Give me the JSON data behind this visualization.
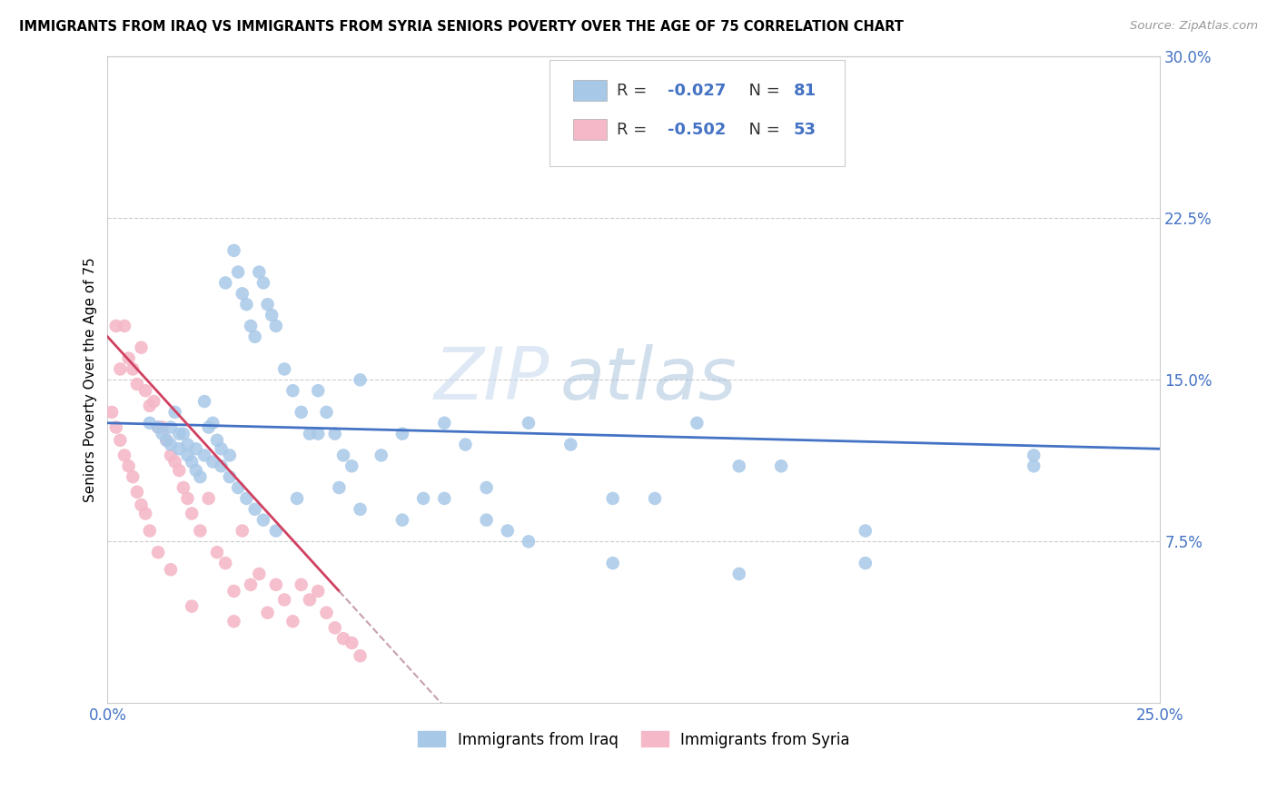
{
  "title": "IMMIGRANTS FROM IRAQ VS IMMIGRANTS FROM SYRIA SENIORS POVERTY OVER THE AGE OF 75 CORRELATION CHART",
  "source": "Source: ZipAtlas.com",
  "ylabel": "Seniors Poverty Over the Age of 75",
  "xlabel_iraq": "Immigrants from Iraq",
  "xlabel_syria": "Immigrants from Syria",
  "r_iraq": -0.027,
  "n_iraq": 81,
  "r_syria": -0.502,
  "n_syria": 53,
  "xlim": [
    0.0,
    0.25
  ],
  "ylim": [
    0.0,
    0.3
  ],
  "color_iraq": "#a8c8e8",
  "color_syria": "#f4b8c8",
  "line_color_iraq": "#4472c4",
  "line_color_syria": "#d04060",
  "line_color_syria_ext": "#c8a0b0",
  "watermark_zip": "ZIP",
  "watermark_atlas": "atlas",
  "iraq_x": [
    0.01,
    0.012,
    0.013,
    0.014,
    0.015,
    0.016,
    0.017,
    0.018,
    0.019,
    0.02,
    0.021,
    0.022,
    0.023,
    0.024,
    0.025,
    0.026,
    0.027,
    0.028,
    0.029,
    0.03,
    0.031,
    0.032,
    0.033,
    0.034,
    0.035,
    0.036,
    0.037,
    0.038,
    0.039,
    0.04,
    0.042,
    0.044,
    0.046,
    0.048,
    0.05,
    0.052,
    0.054,
    0.056,
    0.058,
    0.06,
    0.065,
    0.07,
    0.075,
    0.08,
    0.085,
    0.09,
    0.095,
    0.1,
    0.11,
    0.12,
    0.13,
    0.14,
    0.15,
    0.16,
    0.18,
    0.22,
    0.015,
    0.017,
    0.019,
    0.021,
    0.023,
    0.025,
    0.027,
    0.029,
    0.031,
    0.033,
    0.035,
    0.037,
    0.04,
    0.045,
    0.05,
    0.055,
    0.06,
    0.07,
    0.08,
    0.09,
    0.1,
    0.12,
    0.15,
    0.18,
    0.22
  ],
  "iraq_y": [
    0.13,
    0.128,
    0.125,
    0.122,
    0.12,
    0.135,
    0.118,
    0.125,
    0.115,
    0.112,
    0.108,
    0.105,
    0.14,
    0.128,
    0.13,
    0.122,
    0.118,
    0.195,
    0.115,
    0.21,
    0.2,
    0.19,
    0.185,
    0.175,
    0.17,
    0.2,
    0.195,
    0.185,
    0.18,
    0.175,
    0.155,
    0.145,
    0.135,
    0.125,
    0.145,
    0.135,
    0.125,
    0.115,
    0.11,
    0.15,
    0.115,
    0.125,
    0.095,
    0.13,
    0.12,
    0.1,
    0.08,
    0.13,
    0.12,
    0.095,
    0.095,
    0.13,
    0.11,
    0.11,
    0.08,
    0.115,
    0.128,
    0.125,
    0.12,
    0.118,
    0.115,
    0.112,
    0.11,
    0.105,
    0.1,
    0.095,
    0.09,
    0.085,
    0.08,
    0.095,
    0.125,
    0.1,
    0.09,
    0.085,
    0.095,
    0.085,
    0.075,
    0.065,
    0.06,
    0.065,
    0.11
  ],
  "syria_x": [
    0.001,
    0.002,
    0.003,
    0.004,
    0.005,
    0.006,
    0.007,
    0.008,
    0.009,
    0.01,
    0.011,
    0.012,
    0.013,
    0.014,
    0.015,
    0.016,
    0.017,
    0.018,
    0.019,
    0.02,
    0.022,
    0.024,
    0.026,
    0.028,
    0.03,
    0.032,
    0.034,
    0.036,
    0.038,
    0.04,
    0.042,
    0.044,
    0.046,
    0.048,
    0.05,
    0.052,
    0.054,
    0.056,
    0.058,
    0.06,
    0.002,
    0.003,
    0.004,
    0.005,
    0.006,
    0.007,
    0.008,
    0.009,
    0.01,
    0.012,
    0.015,
    0.02,
    0.03
  ],
  "syria_y": [
    0.135,
    0.175,
    0.155,
    0.175,
    0.16,
    0.155,
    0.148,
    0.165,
    0.145,
    0.138,
    0.14,
    0.128,
    0.128,
    0.122,
    0.115,
    0.112,
    0.108,
    0.1,
    0.095,
    0.088,
    0.08,
    0.095,
    0.07,
    0.065,
    0.052,
    0.08,
    0.055,
    0.06,
    0.042,
    0.055,
    0.048,
    0.038,
    0.055,
    0.048,
    0.052,
    0.042,
    0.035,
    0.03,
    0.028,
    0.022,
    0.128,
    0.122,
    0.115,
    0.11,
    0.105,
    0.098,
    0.092,
    0.088,
    0.08,
    0.07,
    0.062,
    0.045,
    0.038
  ]
}
